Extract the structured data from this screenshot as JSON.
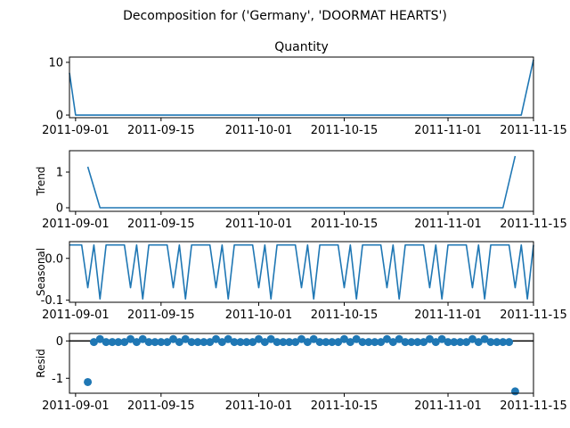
{
  "figure": {
    "suptitle": "Decomposition for ('Germany', 'DOORMAT HEARTS')"
  },
  "chart_data": [
    {
      "type": "line",
      "title": "Quantity",
      "ylabel": "",
      "x_ticks": [
        "2011-09-01",
        "2011-09-15",
        "2011-10-01",
        "2011-10-15",
        "2011-11-01",
        "2011-11-15"
      ],
      "y_ticks": [
        "0",
        "10"
      ],
      "ylim": [
        -0.5,
        11
      ],
      "series": [
        {
          "color": "#1f77b4",
          "points": [
            [
              "2011-08-31",
              8
            ],
            [
              "2011-09-01",
              0
            ],
            [
              "2011-11-13",
              0
            ],
            [
              "2011-11-15",
              10.5
            ]
          ]
        }
      ]
    },
    {
      "type": "line",
      "title": "",
      "ylabel": "Trend",
      "x_ticks": [
        "2011-09-01",
        "2011-09-15",
        "2011-10-01",
        "2011-10-15",
        "2011-11-01",
        "2011-11-15"
      ],
      "y_ticks": [
        "0",
        "1"
      ],
      "ylim": [
        -0.1,
        1.6
      ],
      "series": [
        {
          "color": "#1f77b4",
          "points": [
            [
              "2011-09-03",
              1.15
            ],
            [
              "2011-09-05",
              0
            ],
            [
              "2011-11-10",
              0
            ],
            [
              "2011-11-12",
              1.45
            ]
          ]
        }
      ]
    },
    {
      "type": "line",
      "title": "",
      "ylabel": "Seasonal",
      "x_ticks": [
        "2011-09-01",
        "2011-09-15",
        "2011-10-01",
        "2011-10-15",
        "2011-11-01",
        "2011-11-15"
      ],
      "y_ticks": [
        "0.0",
        "-0.1"
      ],
      "ylim": [
        -0.105,
        0.04
      ],
      "seasonal_pattern": {
        "start": "2011-08-31",
        "end": "2011-11-15",
        "period_days": 7,
        "values": [
          0.032,
          0.032,
          0.032,
          -0.07,
          0.032,
          -0.097,
          0.032
        ]
      },
      "series": [
        {
          "color": "#1f77b4"
        }
      ]
    },
    {
      "type": "scatter",
      "title": "",
      "ylabel": "Resid",
      "x_ticks": [
        "2011-09-01",
        "2011-09-15",
        "2011-10-01",
        "2011-10-15",
        "2011-11-01",
        "2011-11-15"
      ],
      "y_ticks": [
        "0",
        "-1"
      ],
      "ylim": [
        -1.4,
        0.2
      ],
      "zero_line": true,
      "resid_pattern": {
        "start": "2011-09-04",
        "end": "2011-11-11",
        "period_days": 7,
        "values": [
          -0.03,
          0.05,
          -0.03,
          -0.03,
          -0.03,
          -0.03,
          0.05
        ]
      },
      "series": [
        {
          "color": "#1f77b4",
          "points": [
            [
              "2011-09-03",
              -1.1
            ],
            [
              "2011-11-12",
              -1.35
            ]
          ]
        }
      ]
    }
  ]
}
